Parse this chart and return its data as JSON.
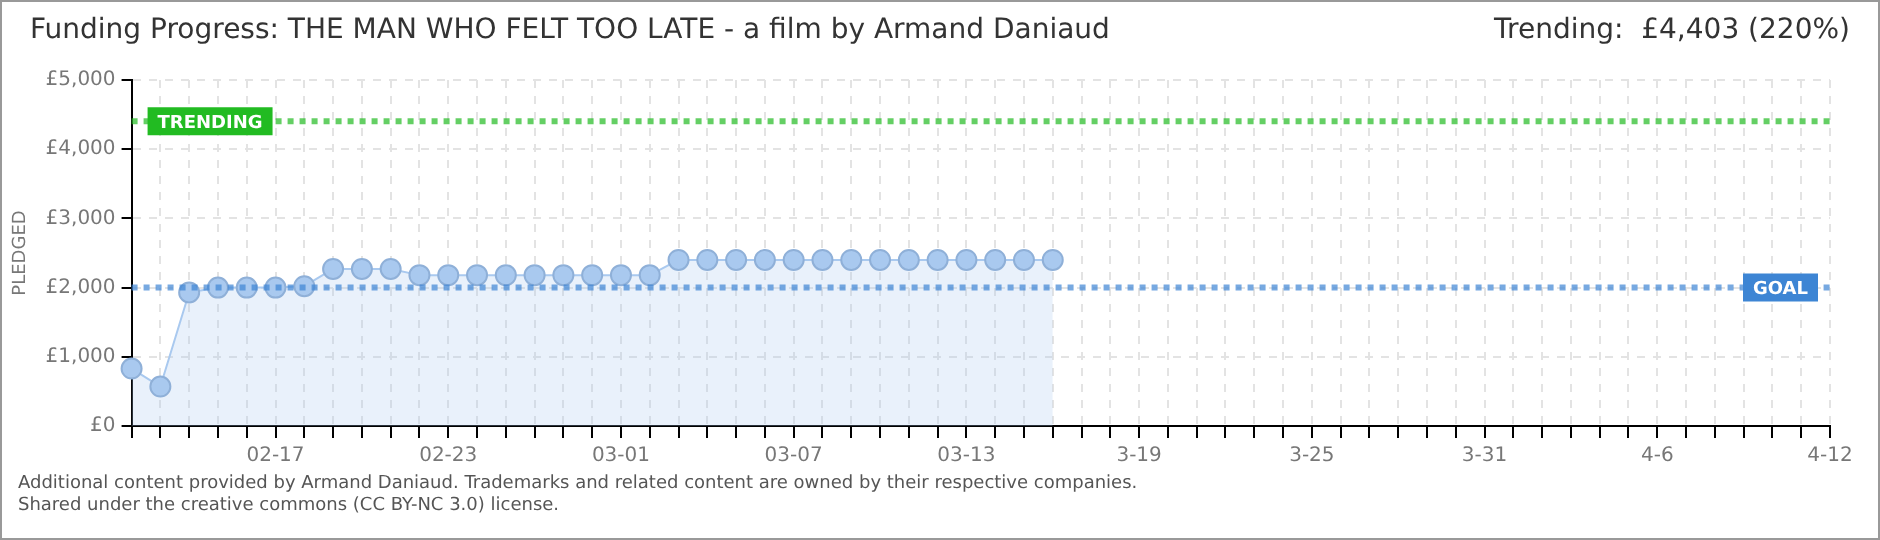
{
  "chart_data": {
    "type": "area",
    "title": "Funding Progress: THE MAN WHO FELT TOO LATE - a film by Armand Daniaud",
    "subtitle": "Trending:  £4,403 (220%)",
    "ylabel": "PLEDGED",
    "categories": [
      null,
      null,
      null,
      null,
      null,
      "02-17",
      null,
      null,
      null,
      null,
      null,
      "02-23",
      null,
      null,
      null,
      null,
      null,
      "03-01",
      null,
      null,
      null,
      null,
      null,
      "03-07",
      null,
      null,
      null,
      null,
      null,
      "03-13",
      null,
      null,
      null,
      null,
      null,
      "3-19",
      null,
      null,
      null,
      null,
      null,
      "3-25",
      null,
      null,
      null,
      null,
      null,
      "3-31",
      null,
      null,
      null,
      null,
      null,
      "4-6",
      null,
      null,
      null,
      null,
      null,
      "4-12"
    ],
    "series": [
      {
        "color": "#a9c9ef",
        "values": [
          830,
          570,
          1930,
          2000,
          2000,
          2000,
          2020,
          2270,
          2270,
          2270,
          2180,
          2180,
          2180,
          2180,
          2180,
          2180,
          2180,
          2180,
          2180,
          2400,
          2400,
          2400,
          2400,
          2400,
          2400,
          2400,
          2400,
          2400,
          2400,
          2400,
          2400,
          2400,
          2400,
          null,
          null,
          null,
          null,
          null,
          null,
          null,
          null,
          null,
          null,
          null,
          null,
          null,
          null,
          null,
          null,
          null,
          null,
          null,
          null,
          null,
          null,
          null,
          null,
          null,
          null,
          null
        ]
      }
    ],
    "ylim": [
      0,
      5000
    ],
    "yticks": [
      {
        "value": 0,
        "label": "£0"
      },
      {
        "value": 1000,
        "label": "£1,000"
      },
      {
        "value": 2000,
        "label": "£2,000"
      },
      {
        "value": 3000,
        "label": "£3,000"
      },
      {
        "value": 4000,
        "label": "£4,000"
      },
      {
        "value": 5000,
        "label": "£5,000"
      }
    ],
    "ref_lines": [
      {
        "axis": "y",
        "value": 4403,
        "label": "TRENDING",
        "color": "#22bb22",
        "line_style": "dotted"
      },
      {
        "axis": "y",
        "value": 2000,
        "label": "GOAL",
        "color": "#3d85d4",
        "line_style": "dotted"
      }
    ],
    "grid": true,
    "legend": false,
    "marker": "circle",
    "line_style": "solid",
    "annotations": [
      "Additional content provided by Armand Daniaud. Trademarks and related content are owned by their respective companies.",
      "Shared under the creative commons (CC BY-NC 3.0) license."
    ]
  }
}
